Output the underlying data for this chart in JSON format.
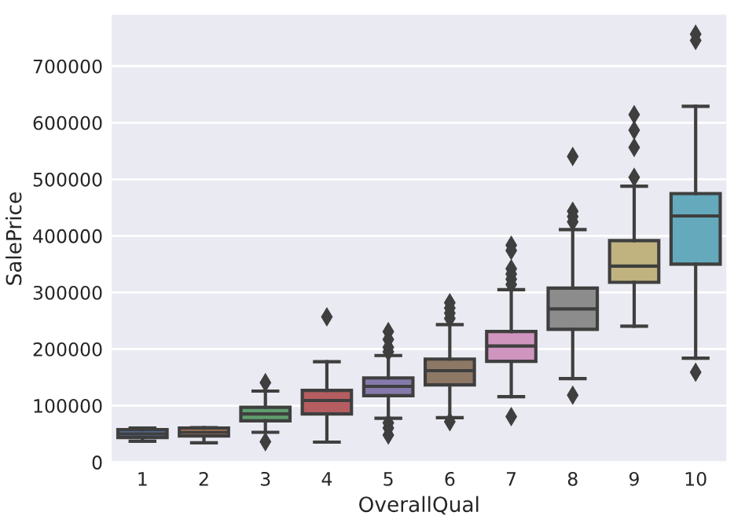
{
  "chart_data": {
    "type": "box",
    "xlabel": "OverallQual",
    "ylabel": "SalePrice",
    "categories": [
      "1",
      "2",
      "3",
      "4",
      "5",
      "6",
      "7",
      "8",
      "9",
      "10"
    ],
    "colors": [
      "#5975a4",
      "#cc8963",
      "#5f9e6e",
      "#b55d60",
      "#857aab",
      "#8d7866",
      "#d095bf",
      "#8c8c8c",
      "#c1b37f",
      "#64a9bc"
    ],
    "boxes": [
      {
        "low": 37100,
        "q1": 43800,
        "median": 50150,
        "q3": 57600,
        "high": 60400
      },
      {
        "low": 34300,
        "q1": 46500,
        "median": 52900,
        "q3": 60400,
        "high": 61000
      },
      {
        "low": 52900,
        "q1": 73100,
        "median": 85300,
        "q3": 97200,
        "high": 125800,
        "outliers": [
          140700,
          36300
        ]
      },
      {
        "low": 35500,
        "q1": 85300,
        "median": 109100,
        "q3": 126900,
        "high": 177600,
        "outliers": [
          257000
        ]
      },
      {
        "low": 77800,
        "q1": 117500,
        "median": 134100,
        "q3": 149000,
        "high": 188600,
        "outliers": [
          231000,
          217000,
          203000,
          195000,
          69500,
          60400,
          48200
        ]
      },
      {
        "low": 78700,
        "q1": 136800,
        "median": 161800,
        "q3": 182300,
        "high": 243200,
        "outliers": [
          282000,
          272600,
          263400,
          254300,
          71500
        ]
      },
      {
        "low": 115800,
        "q1": 178400,
        "median": 205300,
        "q3": 231000,
        "high": 305000,
        "outliers": [
          383400,
          374200,
          341800,
          332700,
          323500,
          314100,
          80600
        ]
      },
      {
        "low": 147900,
        "q1": 234900,
        "median": 270900,
        "q3": 307800,
        "high": 411100,
        "outliers": [
          540400,
          443500,
          434300,
          424900,
          118600
        ]
      },
      {
        "low": 240400,
        "q1": 318000,
        "median": 346500,
        "q3": 391700,
        "high": 487800,
        "outliers": [
          614400,
          586700,
          556200,
          503600
        ]
      },
      {
        "low": 183900,
        "q1": 350100,
        "median": 435200,
        "q3": 474800,
        "high": 629100,
        "outliers": [
          756500,
          745400,
          159000
        ]
      }
    ],
    "ylim": [
      -1100,
      791000
    ],
    "yticks": [
      0,
      100000,
      200000,
      300000,
      400000,
      500000,
      600000,
      700000
    ],
    "grid": "y",
    "marker": "diamond",
    "legend": false
  }
}
